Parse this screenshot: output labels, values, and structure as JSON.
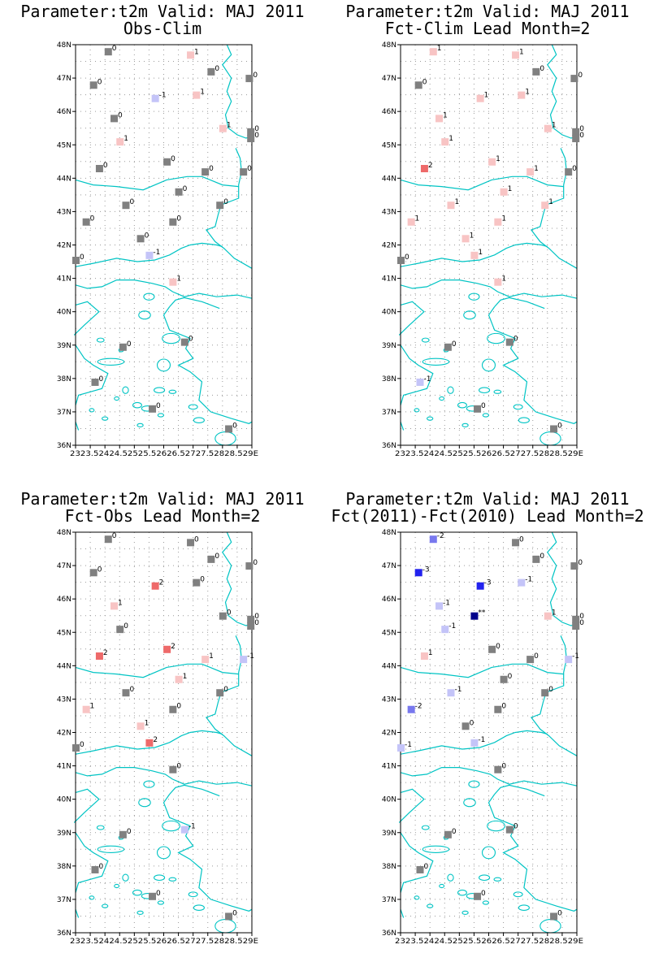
{
  "colors": {
    "gray": "#808080",
    "pos1": "#f8c4c4",
    "pos2": "#ee6a6a",
    "neg1": "#c4c4f8",
    "neg2": "#7878ee",
    "neg3": "#2222ee",
    "extreme": "#00008b",
    "coast": "#00c4c4",
    "grid": "#9a9a9a"
  },
  "y_ticks": [
    "48N",
    "47N",
    "46N",
    "45N",
    "44N",
    "43N",
    "42N",
    "41N",
    "40N",
    "39N",
    "38N",
    "37N",
    "36N"
  ],
  "x_tick_text": "2323.52424.52525.52626.52727.52828.529E",
  "panels": [
    {
      "title_line1": "Parameter:t2m Valid: MAJ 2011",
      "title_line2": "Obs-Clim",
      "stations": [
        {
          "lon": 24.1,
          "lat": 47.8,
          "value": "0"
        },
        {
          "lon": 26.9,
          "lat": 47.7,
          "value": "1"
        },
        {
          "lon": 27.6,
          "lat": 47.2,
          "value": "0"
        },
        {
          "lon": 28.9,
          "lat": 47.0,
          "value": "0"
        },
        {
          "lon": 23.6,
          "lat": 46.8,
          "value": "0"
        },
        {
          "lon": 25.7,
          "lat": 46.4,
          "value": "-1"
        },
        {
          "lon": 27.1,
          "lat": 46.5,
          "value": "1"
        },
        {
          "lon": 24.3,
          "lat": 45.8,
          "value": "0"
        },
        {
          "lon": 28.0,
          "lat": 45.5,
          "value": "1"
        },
        {
          "lon": 28.95,
          "lat": 45.4,
          "value": "0"
        },
        {
          "lon": 28.95,
          "lat": 45.2,
          "value": "0"
        },
        {
          "lon": 24.5,
          "lat": 45.1,
          "value": "1"
        },
        {
          "lon": 26.1,
          "lat": 44.5,
          "value": "0"
        },
        {
          "lon": 23.8,
          "lat": 44.3,
          "value": "0"
        },
        {
          "lon": 27.4,
          "lat": 44.2,
          "value": "0"
        },
        {
          "lon": 28.7,
          "lat": 44.2,
          "value": "0"
        },
        {
          "lon": 26.5,
          "lat": 43.6,
          "value": "0"
        },
        {
          "lon": 24.7,
          "lat": 43.2,
          "value": "0"
        },
        {
          "lon": 27.9,
          "lat": 43.2,
          "value": "0"
        },
        {
          "lon": 26.3,
          "lat": 42.7,
          "value": "0"
        },
        {
          "lon": 23.35,
          "lat": 42.7,
          "value": "0"
        },
        {
          "lon": 25.2,
          "lat": 42.2,
          "value": "0"
        },
        {
          "lon": 25.5,
          "lat": 41.7,
          "value": "-1"
        },
        {
          "lon": 23.0,
          "lat": 41.55,
          "value": "0"
        },
        {
          "lon": 26.3,
          "lat": 40.9,
          "value": "1"
        },
        {
          "lon": 24.6,
          "lat": 38.95,
          "value": "0"
        },
        {
          "lon": 26.7,
          "lat": 39.1,
          "value": "0"
        },
        {
          "lon": 23.65,
          "lat": 37.9,
          "value": "0"
        },
        {
          "lon": 25.6,
          "lat": 37.1,
          "value": "0"
        },
        {
          "lon": 28.2,
          "lat": 36.5,
          "value": "0"
        }
      ]
    },
    {
      "title_line1": "Parameter:t2m Valid: MAJ 2011",
      "title_line2": "Fct-Clim Lead Month=2",
      "stations": [
        {
          "lon": 24.1,
          "lat": 47.8,
          "value": "1"
        },
        {
          "lon": 26.9,
          "lat": 47.7,
          "value": "1"
        },
        {
          "lon": 27.6,
          "lat": 47.2,
          "value": "0"
        },
        {
          "lon": 28.9,
          "lat": 47.0,
          "value": "0"
        },
        {
          "lon": 23.6,
          "lat": 46.8,
          "value": "0"
        },
        {
          "lon": 25.7,
          "lat": 46.4,
          "value": "1"
        },
        {
          "lon": 27.1,
          "lat": 46.5,
          "value": "1"
        },
        {
          "lon": 24.3,
          "lat": 45.8,
          "value": "1"
        },
        {
          "lon": 28.0,
          "lat": 45.5,
          "value": "1"
        },
        {
          "lon": 28.95,
          "lat": 45.4,
          "value": "0"
        },
        {
          "lon": 28.95,
          "lat": 45.2,
          "value": "0"
        },
        {
          "lon": 24.5,
          "lat": 45.1,
          "value": "1"
        },
        {
          "lon": 26.1,
          "lat": 44.5,
          "value": "1"
        },
        {
          "lon": 23.8,
          "lat": 44.3,
          "value": "2"
        },
        {
          "lon": 27.4,
          "lat": 44.2,
          "value": "1"
        },
        {
          "lon": 28.7,
          "lat": 44.2,
          "value": "0"
        },
        {
          "lon": 26.5,
          "lat": 43.6,
          "value": "1"
        },
        {
          "lon": 24.7,
          "lat": 43.2,
          "value": "1"
        },
        {
          "lon": 27.9,
          "lat": 43.2,
          "value": "1"
        },
        {
          "lon": 26.3,
          "lat": 42.7,
          "value": "1"
        },
        {
          "lon": 23.35,
          "lat": 42.7,
          "value": "1"
        },
        {
          "lon": 25.2,
          "lat": 42.2,
          "value": "1"
        },
        {
          "lon": 25.5,
          "lat": 41.7,
          "value": "1"
        },
        {
          "lon": 23.0,
          "lat": 41.55,
          "value": "0"
        },
        {
          "lon": 26.3,
          "lat": 40.9,
          "value": "1"
        },
        {
          "lon": 24.6,
          "lat": 38.95,
          "value": "0"
        },
        {
          "lon": 26.7,
          "lat": 39.1,
          "value": "0"
        },
        {
          "lon": 23.65,
          "lat": 37.9,
          "value": "-1"
        },
        {
          "lon": 25.6,
          "lat": 37.1,
          "value": "0"
        },
        {
          "lon": 28.2,
          "lat": 36.5,
          "value": "0"
        }
      ]
    },
    {
      "title_line1": "Parameter:t2m Valid: MAJ 2011",
      "title_line2": "Fct-Obs Lead Month=2",
      "stations": [
        {
          "lon": 24.1,
          "lat": 47.8,
          "value": "0"
        },
        {
          "lon": 26.9,
          "lat": 47.7,
          "value": "0"
        },
        {
          "lon": 27.6,
          "lat": 47.2,
          "value": "0"
        },
        {
          "lon": 28.9,
          "lat": 47.0,
          "value": "0"
        },
        {
          "lon": 23.6,
          "lat": 46.8,
          "value": "0"
        },
        {
          "lon": 25.7,
          "lat": 46.4,
          "value": "2"
        },
        {
          "lon": 27.1,
          "lat": 46.5,
          "value": "0"
        },
        {
          "lon": 24.3,
          "lat": 45.8,
          "value": "1"
        },
        {
          "lon": 28.0,
          "lat": 45.5,
          "value": "0"
        },
        {
          "lon": 28.95,
          "lat": 45.4,
          "value": "0"
        },
        {
          "lon": 28.95,
          "lat": 45.2,
          "value": "0"
        },
        {
          "lon": 24.5,
          "lat": 45.1,
          "value": "0"
        },
        {
          "lon": 26.1,
          "lat": 44.5,
          "value": "2"
        },
        {
          "lon": 23.8,
          "lat": 44.3,
          "value": "2"
        },
        {
          "lon": 27.4,
          "lat": 44.2,
          "value": "1"
        },
        {
          "lon": 28.7,
          "lat": 44.2,
          "value": "-1"
        },
        {
          "lon": 26.5,
          "lat": 43.6,
          "value": "1"
        },
        {
          "lon": 24.7,
          "lat": 43.2,
          "value": "0"
        },
        {
          "lon": 27.9,
          "lat": 43.2,
          "value": "0"
        },
        {
          "lon": 26.3,
          "lat": 42.7,
          "value": "0"
        },
        {
          "lon": 23.35,
          "lat": 42.7,
          "value": "1"
        },
        {
          "lon": 25.2,
          "lat": 42.2,
          "value": "1"
        },
        {
          "lon": 25.5,
          "lat": 41.7,
          "value": "2"
        },
        {
          "lon": 23.0,
          "lat": 41.55,
          "value": "0"
        },
        {
          "lon": 26.3,
          "lat": 40.9,
          "value": "0"
        },
        {
          "lon": 24.6,
          "lat": 38.95,
          "value": "0"
        },
        {
          "lon": 26.7,
          "lat": 39.1,
          "value": "-1"
        },
        {
          "lon": 23.65,
          "lat": 37.9,
          "value": "0"
        },
        {
          "lon": 25.6,
          "lat": 37.1,
          "value": "0"
        },
        {
          "lon": 28.2,
          "lat": 36.5,
          "value": "0"
        }
      ]
    },
    {
      "title_line1": "Parameter:t2m Valid: MAJ 2011",
      "title_line2": "Fct(2011)-Fct(2010) Lead Month=2",
      "stations": [
        {
          "lon": 24.1,
          "lat": 47.8,
          "value": "-2"
        },
        {
          "lon": 26.9,
          "lat": 47.7,
          "value": "0"
        },
        {
          "lon": 27.6,
          "lat": 47.2,
          "value": "0"
        },
        {
          "lon": 28.9,
          "lat": 47.0,
          "value": "0"
        },
        {
          "lon": 23.6,
          "lat": 46.8,
          "value": "-3"
        },
        {
          "lon": 25.7,
          "lat": 46.4,
          "value": "-3"
        },
        {
          "lon": 27.1,
          "lat": 46.5,
          "value": "-1"
        },
        {
          "lon": 24.3,
          "lat": 45.8,
          "value": "-1"
        },
        {
          "lon": 28.0,
          "lat": 45.5,
          "value": "1"
        },
        {
          "lon": 28.95,
          "lat": 45.4,
          "value": "0"
        },
        {
          "lon": 28.95,
          "lat": 45.2,
          "value": "0"
        },
        {
          "lon": 24.5,
          "lat": 45.1,
          "value": "-1"
        },
        {
          "lon": 25.5,
          "lat": 45.5,
          "value": "**"
        },
        {
          "lon": 26.1,
          "lat": 44.5,
          "value": "0"
        },
        {
          "lon": 23.8,
          "lat": 44.3,
          "value": "1"
        },
        {
          "lon": 27.4,
          "lat": 44.2,
          "value": "0"
        },
        {
          "lon": 28.7,
          "lat": 44.2,
          "value": "-1"
        },
        {
          "lon": 26.5,
          "lat": 43.6,
          "value": "0"
        },
        {
          "lon": 24.7,
          "lat": 43.2,
          "value": "-1"
        },
        {
          "lon": 27.9,
          "lat": 43.2,
          "value": "0"
        },
        {
          "lon": 26.3,
          "lat": 42.7,
          "value": "0"
        },
        {
          "lon": 23.35,
          "lat": 42.7,
          "value": "-2"
        },
        {
          "lon": 25.2,
          "lat": 42.2,
          "value": "0"
        },
        {
          "lon": 25.5,
          "lat": 41.7,
          "value": "-1"
        },
        {
          "lon": 23.0,
          "lat": 41.55,
          "value": "-1"
        },
        {
          "lon": 26.3,
          "lat": 40.9,
          "value": "0"
        },
        {
          "lon": 24.6,
          "lat": 38.95,
          "value": "0"
        },
        {
          "lon": 26.7,
          "lat": 39.1,
          "value": "0"
        },
        {
          "lon": 23.65,
          "lat": 37.9,
          "value": "0"
        },
        {
          "lon": 25.6,
          "lat": 37.1,
          "value": "0"
        },
        {
          "lon": 28.2,
          "lat": 36.5,
          "value": "0"
        }
      ]
    }
  ]
}
